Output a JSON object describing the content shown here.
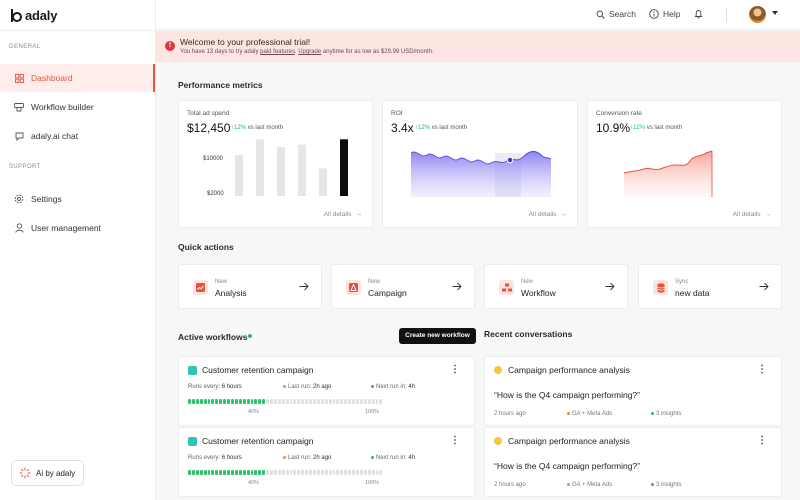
{
  "app": {
    "name": "adaly"
  },
  "sidebar": {
    "general_label": "GENERAL",
    "support_label": "SUPPORT",
    "items": [
      {
        "label": "Dashboard",
        "icon": "dashboard-icon"
      },
      {
        "label": "Workflow builder",
        "icon": "workflow-icon"
      },
      {
        "label": "adaly.ai chat",
        "icon": "chat-icon"
      },
      {
        "label": "Settings",
        "icon": "gear-icon"
      },
      {
        "label": "User management",
        "icon": "user-icon"
      }
    ],
    "ai_button": "Ai by adaly"
  },
  "topbar": {
    "search": "Search",
    "help": "Help"
  },
  "banner": {
    "title": "Welcome to your professional trial!",
    "sub_prefix": "You have 13 days to try adaly ",
    "sub_link1": "paid features",
    "sub_mid": ". ",
    "sub_link2": "Upgrade",
    "sub_suffix": " anytime for as low as $29.99 USD/month."
  },
  "performance": {
    "heading": "Performance metrics",
    "all_details": "All details",
    "cards": [
      {
        "label": "Total ad spend",
        "value": "$12,450",
        "delta": "12%",
        "delta_text": "vs last month"
      },
      {
        "label": "ROI",
        "value": "3.4x",
        "delta": "12%",
        "delta_text": "vs last month"
      },
      {
        "label": "Conversion rate",
        "value": "10.9%",
        "delta": "12%",
        "delta_text": "vs last month"
      }
    ]
  },
  "chart_data": [
    {
      "type": "bar",
      "ylabel_ticks": [
        "$10000",
        "$2000"
      ],
      "values": [
        15500,
        21500,
        18500,
        19500,
        10500,
        21500
      ],
      "highlight_index": 5
    },
    {
      "type": "area",
      "label": "ROI"
    },
    {
      "type": "area",
      "label": "Conversion rate"
    }
  ],
  "quick_actions": {
    "heading": "Quick actions",
    "items": [
      {
        "small": "New",
        "big": "Analysis",
        "icon": "chart-icon"
      },
      {
        "small": "New",
        "big": "Campaign",
        "icon": "campaign-icon"
      },
      {
        "small": "New",
        "big": "Workflow",
        "icon": "workflow-icon"
      },
      {
        "small": "Sync",
        "big": "new data",
        "icon": "database-icon"
      }
    ]
  },
  "workflows": {
    "heading": "Active workflows",
    "create_button": "Create new workflow",
    "items": [
      {
        "title": "Customer retention campaign",
        "runs_label": "Runs every:",
        "runs_value": "6 hours",
        "last_label": "Last run:",
        "last_value": "2h ago",
        "next_label": "Next run in:",
        "next_value": "4h",
        "progress": 0.4,
        "pct_mid": "40%",
        "pct_end": "100%"
      },
      {
        "title": "Customer retention campaign",
        "runs_label": "Runs every:",
        "runs_value": "6 hours",
        "last_label": "Last run:",
        "last_value": "2h ago",
        "next_label": "Next run in:",
        "next_value": "4h",
        "progress": 0.4,
        "pct_mid": "40%",
        "pct_end": "100%"
      }
    ]
  },
  "conversations": {
    "heading": "Recent conversations",
    "items": [
      {
        "title": "Campaign performance analysis",
        "quote": "“How is the Q4 campaign performing?”",
        "time": "2 hours ago",
        "source": "GA + Meta Ads",
        "insights": "3 insights"
      },
      {
        "title": "Campaign performance analysis",
        "quote": "“How is the Q4 campaign performing?”",
        "time": "2 hours ago",
        "source": "GA + Meta Ads",
        "insights": "3 insights"
      }
    ]
  }
}
